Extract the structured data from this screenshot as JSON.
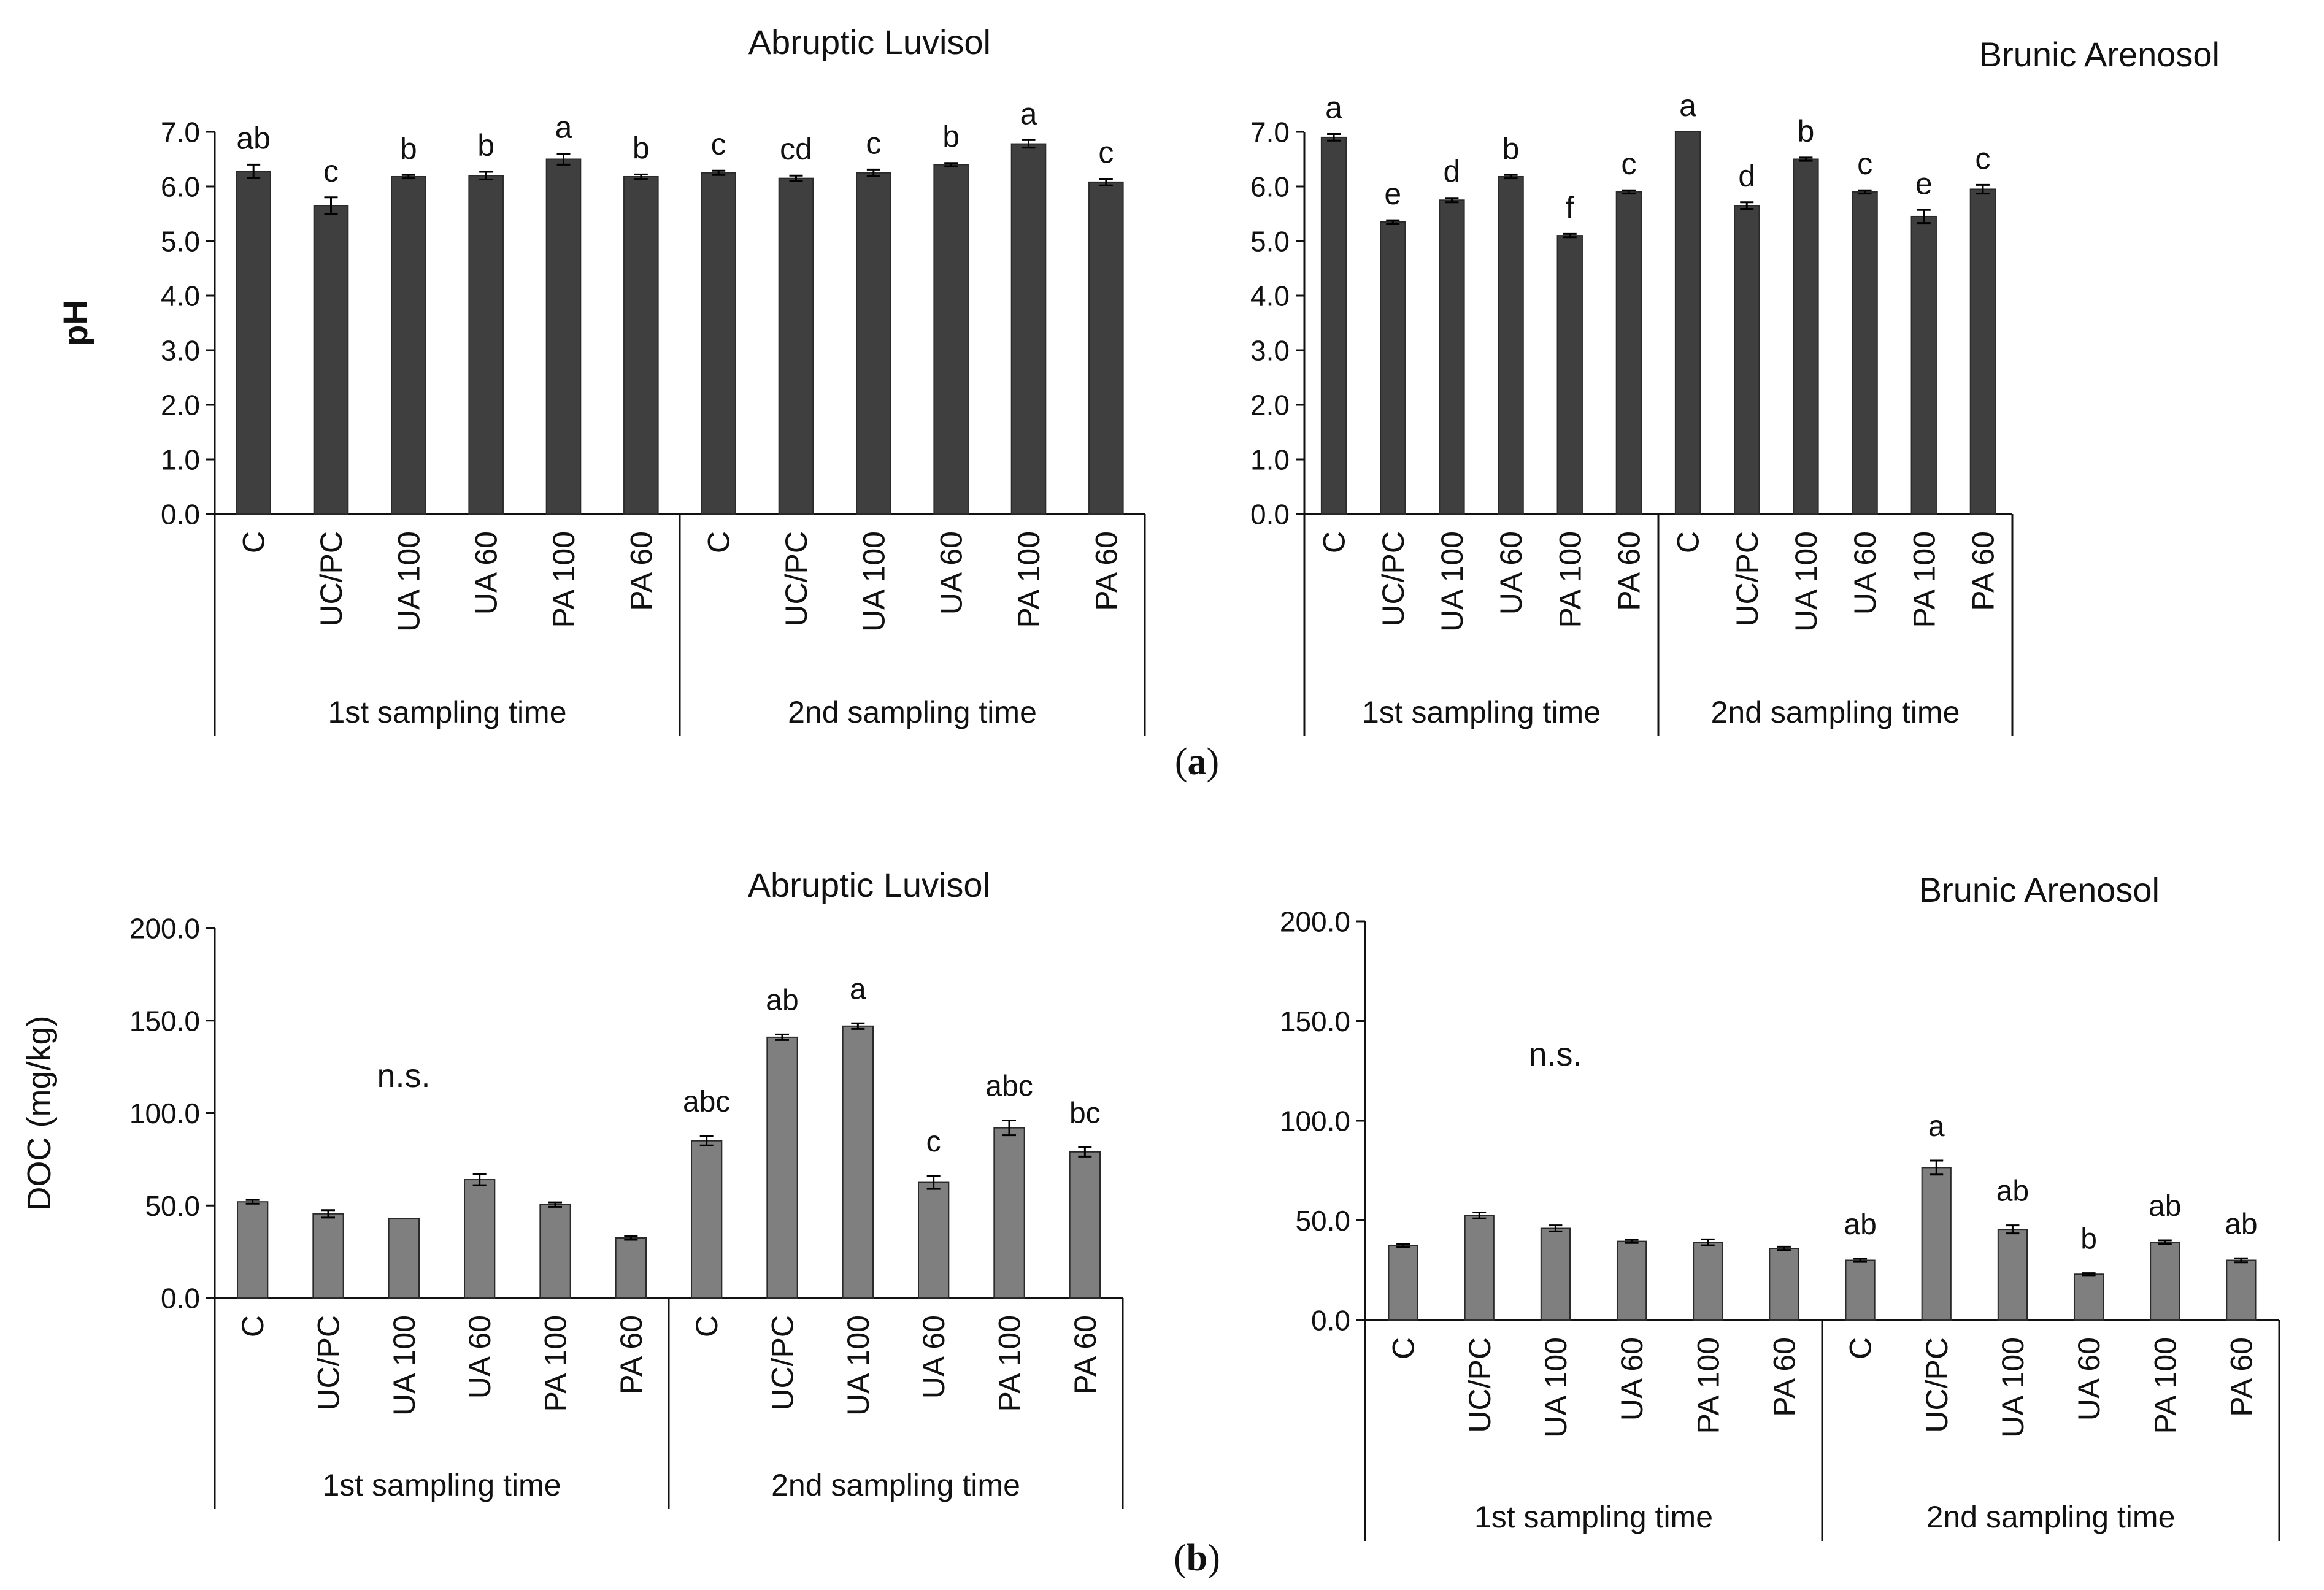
{
  "figure": {
    "panel_labels": [
      {
        "open": "(",
        "letter": "a",
        "close": ")"
      },
      {
        "open": "(",
        "letter": "b",
        "close": ")"
      }
    ],
    "colors": {
      "ph_bar": "#3f3f3f",
      "doc_bar": "#7f7f7f",
      "axis": "#111111"
    }
  },
  "chart_data": [
    {
      "type": "bar",
      "title": "Abruptic Luvisol",
      "ylabel": "pH",
      "xlabel": "",
      "ylim": [
        0,
        7
      ],
      "yticks": [
        "0.0",
        "1.0",
        "2.0",
        "3.0",
        "4.0",
        "5.0",
        "6.0",
        "7.0"
      ],
      "groups": [
        "1st sampling time",
        "2nd sampling time"
      ],
      "categories": [
        "C",
        "UC/PC",
        "UA 100",
        "UA 60",
        "PA 100",
        "PA 60",
        "C",
        "UC/PC",
        "UA 100",
        "UA 60",
        "PA 100",
        "PA 60"
      ],
      "values": [
        6.28,
        5.65,
        6.18,
        6.2,
        6.5,
        6.18,
        6.25,
        6.15,
        6.25,
        6.4,
        6.78,
        6.08
      ],
      "errors": [
        0.12,
        0.15,
        0.03,
        0.07,
        0.1,
        0.04,
        0.04,
        0.05,
        0.06,
        0.03,
        0.07,
        0.06
      ],
      "letters": [
        "ab",
        "c",
        "b",
        "b",
        "a",
        "b",
        "c",
        "cd",
        "c",
        "b",
        "a",
        "c"
      ]
    },
    {
      "type": "bar",
      "title": "Brunic Arenosol",
      "ylabel": "",
      "xlabel": "",
      "ylim": [
        0,
        7
      ],
      "yticks": [
        "0.0",
        "1.0",
        "2.0",
        "3.0",
        "4.0",
        "5.0",
        "6.0",
        "7.0"
      ],
      "groups": [
        "1st sampling time",
        "2nd sampling time"
      ],
      "categories": [
        "C",
        "UC/PC",
        "UA 100",
        "UA 60",
        "PA 100",
        "PA 60",
        "C",
        "UC/PC",
        "UA 100",
        "UA 60",
        "PA 100",
        "PA 60"
      ],
      "values": [
        6.9,
        5.35,
        5.75,
        6.18,
        5.1,
        5.9,
        7.0,
        5.65,
        6.5,
        5.9,
        5.45,
        5.95
      ],
      "errors": [
        0.06,
        0.03,
        0.04,
        0.03,
        0.03,
        0.03,
        0.0,
        0.06,
        0.03,
        0.03,
        0.12,
        0.08
      ],
      "letters": [
        "a",
        "e",
        "d",
        "b",
        "f",
        "c",
        "a",
        "d",
        "b",
        "c",
        "e",
        "c"
      ]
    },
    {
      "type": "bar",
      "title": "Abruptic Luvisol",
      "ylabel": "DOC (mg/kg)",
      "xlabel": "",
      "ylim": [
        0,
        200
      ],
      "yticks": [
        "0.0",
        "50.0",
        "100.0",
        "150.0",
        "200.0"
      ],
      "annotation": "n.s.",
      "groups": [
        "1st sampling time",
        "2nd sampling time"
      ],
      "categories": [
        "C",
        "UC/PC",
        "UA 100",
        "UA 60",
        "PA 100",
        "PA 60",
        "C",
        "UC/PC",
        "UA 100",
        "UA 60",
        "PA 100",
        "PA 60"
      ],
      "values": [
        52,
        45.5,
        43,
        64,
        50.5,
        32.5,
        85,
        141,
        147,
        62.5,
        92,
        79
      ],
      "errors": [
        1.0,
        2.0,
        0,
        3.0,
        1.2,
        1.0,
        2.5,
        1.5,
        1.5,
        3.5,
        4.0,
        2.5
      ],
      "letters": [
        "",
        "",
        "",
        "",
        "",
        "",
        "abc",
        "ab",
        "a",
        "c",
        "abc",
        "bc"
      ]
    },
    {
      "type": "bar",
      "title": "Brunic Arenosol",
      "ylabel": "",
      "xlabel": "",
      "ylim": [
        0,
        200
      ],
      "yticks": [
        "0.0",
        "50.0",
        "100.0",
        "150.0",
        "200.0"
      ],
      "annotation": "n.s.",
      "groups": [
        "1st sampling time",
        "2nd sampling time"
      ],
      "categories": [
        "C",
        "UC/PC",
        "UA 100",
        "UA 60",
        "PA 100",
        "PA 60",
        "C",
        "UC/PC",
        "UA 100",
        "UA 60",
        "PA 100",
        "PA 60"
      ],
      "values": [
        37.5,
        52.5,
        46,
        39.5,
        39,
        36,
        30,
        76.5,
        45.5,
        23,
        39,
        30
      ],
      "errors": [
        0.8,
        1.5,
        1.5,
        0.8,
        1.5,
        0.8,
        0.8,
        3.5,
        2.0,
        0.5,
        1.0,
        1.0
      ],
      "letters": [
        "",
        "",
        "",
        "",
        "",
        "",
        "ab",
        "a",
        "ab",
        "b",
        "ab",
        "ab"
      ]
    }
  ]
}
